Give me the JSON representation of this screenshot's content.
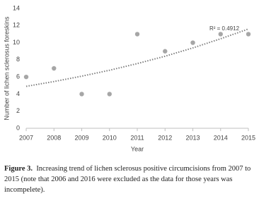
{
  "chart_data": {
    "type": "scatter",
    "x": [
      2007,
      2008,
      2009,
      2010,
      2011,
      2012,
      2013,
      2014,
      2015
    ],
    "values": [
      6,
      7,
      4,
      4,
      11,
      9,
      10,
      11,
      11
    ],
    "color": "#a6a6a6",
    "trendline": {
      "type": "exponential",
      "color": "#7f7f7f",
      "values": [
        4.9,
        5.46,
        6.09,
        6.78,
        7.56,
        8.42,
        9.39,
        10.46,
        11.6
      ],
      "annotation": "R² = 0.4912"
    },
    "xlabel": "Year",
    "ylabel": "Number of lichen sclerosus foreskins",
    "xlim": [
      2007,
      2015
    ],
    "xticks": [
      2007,
      2008,
      2009,
      2010,
      2011,
      2012,
      2013,
      2014,
      2015
    ],
    "ylim": [
      0,
      14
    ],
    "yticks": [
      0,
      2,
      4,
      6,
      8,
      10,
      12,
      14
    ],
    "grid": false
  },
  "caption": {
    "label": "Figure 3.",
    "text": "Increasing trend of lichen sclerosus positive circumcisions from 2007 to 2015 (note that 2006 and 2016 were excluded as the data for those years was incompelete)."
  }
}
